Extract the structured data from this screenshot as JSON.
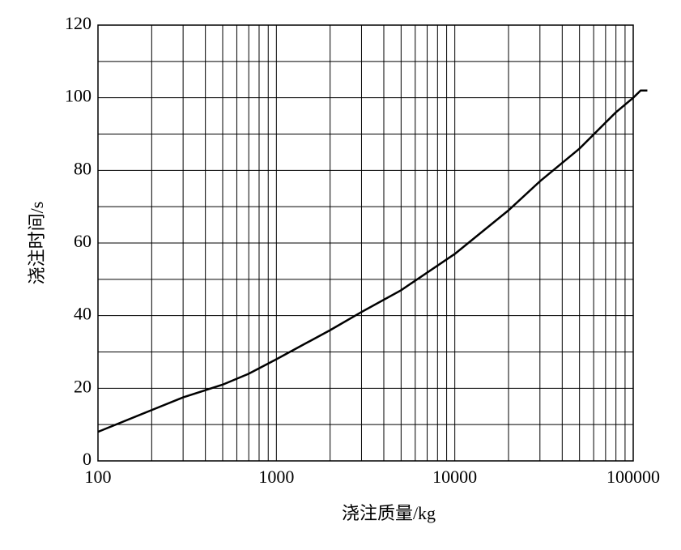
{
  "chart_data": {
    "type": "line",
    "xlabel": "浇注质量/kg",
    "ylabel": "浇注时间/s",
    "x": [
      100,
      200,
      300,
      500,
      700,
      1000,
      2000,
      3000,
      5000,
      10000,
      20000,
      30000,
      50000,
      80000,
      100000,
      110000,
      120000
    ],
    "series": [
      {
        "color": "#000000",
        "values": [
          8,
          14,
          17.5,
          21,
          24,
          28,
          36,
          41,
          47,
          57,
          69,
          77,
          86,
          96,
          100,
          102,
          102
        ]
      }
    ],
    "xscale": "log",
    "xlim": [
      100,
      100000
    ],
    "xticks": [
      100,
      1000,
      10000,
      100000
    ],
    "ylim": [
      0,
      120
    ],
    "yticks": [
      0,
      20,
      40,
      60,
      80,
      100,
      120
    ],
    "grid": true
  }
}
